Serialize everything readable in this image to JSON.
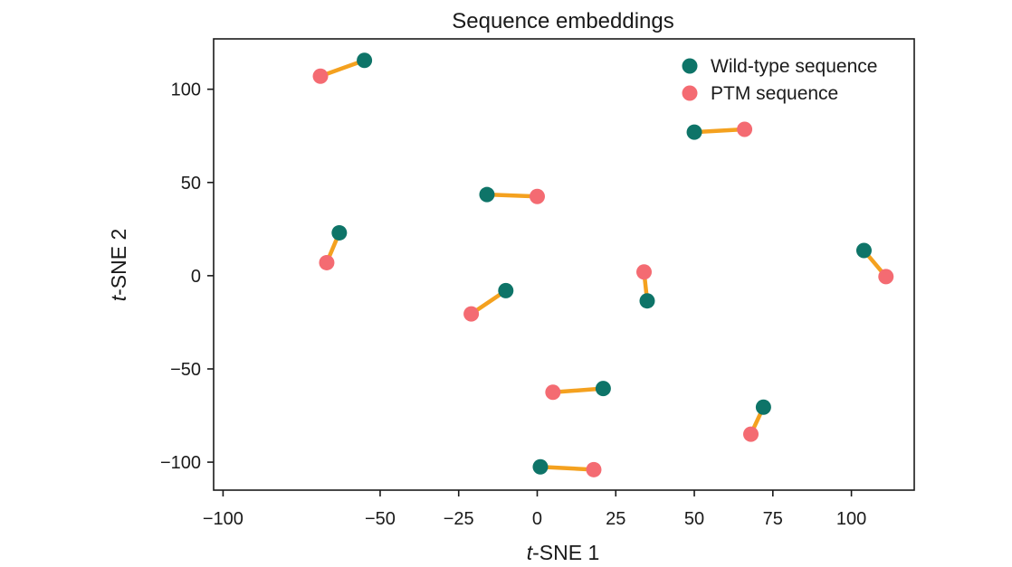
{
  "chart_data": {
    "type": "scatter",
    "title": "Sequence embeddings",
    "xlabel": {
      "italic": "t",
      "rest": "-SNE 1"
    },
    "ylabel": {
      "italic": "t",
      "rest": "-SNE 2"
    },
    "xlim": [
      -103,
      120
    ],
    "ylim": [
      -115,
      127
    ],
    "x_ticks": [
      -100,
      -50,
      -25,
      0,
      25,
      50,
      75,
      100
    ],
    "x_tick_labels": [
      "−100",
      "−50",
      "−25",
      "0",
      "25",
      "50",
      "75",
      "100"
    ],
    "y_ticks": [
      100,
      50,
      0,
      -50,
      -100
    ],
    "y_tick_labels": [
      "100",
      "50",
      "0",
      "−50",
      "−100"
    ],
    "grid": false,
    "legend_position": "top-right",
    "colors": {
      "wild_type": "#0e7468",
      "ptm": "#f46b72",
      "link": "#f4a11f",
      "axis": "#1a1a1a"
    },
    "series": [
      {
        "name": "Wild-type sequence",
        "color": "#0e7468"
      },
      {
        "name": "PTM sequence",
        "color": "#f46b72"
      }
    ],
    "pairs": [
      {
        "wild_type": [
          -55,
          115.5
        ],
        "ptm": [
          -69,
          107
        ]
      },
      {
        "wild_type": [
          50,
          77
        ],
        "ptm": [
          66,
          78.5
        ]
      },
      {
        "wild_type": [
          -16,
          43.5
        ],
        "ptm": [
          0,
          42.5
        ]
      },
      {
        "wild_type": [
          -63,
          23
        ],
        "ptm": [
          -67,
          7
        ]
      },
      {
        "wild_type": [
          104,
          13.5
        ],
        "ptm": [
          111,
          -0.5
        ]
      },
      {
        "wild_type": [
          35,
          -13.5
        ],
        "ptm": [
          34,
          2
        ]
      },
      {
        "wild_type": [
          -10,
          -8
        ],
        "ptm": [
          -21,
          -20.5
        ]
      },
      {
        "wild_type": [
          21,
          -60.5
        ],
        "ptm": [
          5,
          -62.5
        ]
      },
      {
        "wild_type": [
          72,
          -70.5
        ],
        "ptm": [
          68,
          -85
        ]
      },
      {
        "wild_type": [
          1,
          -102.5
        ],
        "ptm": [
          18,
          -104
        ]
      }
    ]
  }
}
